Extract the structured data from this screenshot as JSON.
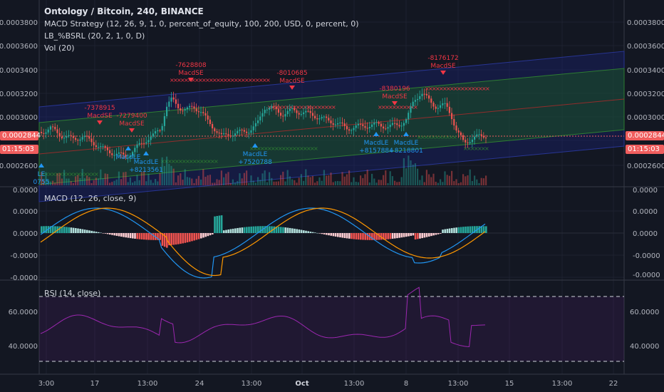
{
  "header": {
    "title": "Ontology / Bitcoin, 240, BINANCE",
    "studies": [
      "MACD Strategy (12, 26, 9, 1, 0, percent_of_equity, 100, 200, USD, 0, percent, 0)",
      "LB_%BSRL (20, 2, 1, 0, D)",
      "Vol (20)"
    ]
  },
  "price_axis": {
    "labels": [
      "0.0003800",
      "0.0003600",
      "0.0003400",
      "0.0003200",
      "0.0003000",
      "0.0002600"
    ],
    "current_price": "0.0002844",
    "countdown": "01:15:03"
  },
  "macd_pane": {
    "legend": "MACD (12, 26, close, 9)",
    "left_labels": [
      "0.0000",
      "0.0000",
      "0.0000",
      "-0.0000",
      "-0.0000"
    ],
    "right_labels": [
      "0.0000",
      "0.0000",
      "0.0000",
      "-0.0000",
      "-0.0000"
    ]
  },
  "rsi_pane": {
    "legend": "RSI (14, close)",
    "labels": [
      "60.0000",
      "40.0000"
    ]
  },
  "time_axis": {
    "labels": [
      "3:00",
      "17",
      "13:00",
      "24",
      "13:00",
      "Oct",
      "13:00",
      "8",
      "13:00",
      "15",
      "13:00",
      "22"
    ]
  },
  "signals": [
    {
      "text": "-7378915",
      "sub": "MacdSE",
      "color": "#f23645"
    },
    {
      "text": "-7279400",
      "sub": "MacdSE",
      "color": "#f23645"
    },
    {
      "text": "-7628808",
      "sub": "MacdSE",
      "color": "#f23645"
    },
    {
      "text": "-8010685",
      "sub": "MacdSE",
      "color": "#f23645"
    },
    {
      "text": "-8380196",
      "sub": "MacdSE",
      "color": "#f23645"
    },
    {
      "text": "-8176172",
      "sub": "MacdSE",
      "color": "#f23645"
    },
    {
      "text": "MacdLE",
      "sub": "+7520788",
      "color": "#2196f3"
    },
    {
      "text": "MacdLE",
      "sub": "+8157884",
      "color": "#2196f3"
    },
    {
      "text": "MacdLE",
      "sub": "+8218801",
      "color": "#2196f3"
    },
    {
      "text": "MacdLE",
      "sub": "+8213561",
      "color": "#2196f3"
    },
    {
      "text": "MacdLE",
      "sub": "",
      "color": "#2196f3"
    },
    {
      "text": "LE",
      "sub": "0755",
      "color": "#2196f3"
    }
  ],
  "colors": {
    "bg": "#131722",
    "up": "#26a69a",
    "down": "#ef5350",
    "price_tag": "#f05d5d",
    "macd_line": "#2196f3",
    "signal_line": "#ff9800",
    "rsi_line": "#9c27b0"
  }
}
